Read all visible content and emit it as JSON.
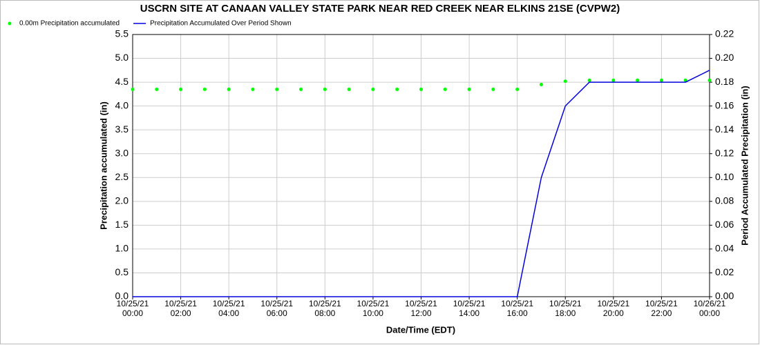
{
  "chart_data": {
    "type": "line",
    "title": "USCRN SITE AT CANAAN VALLEY STATE PARK NEAR RED CREEK NEAR ELKINS 21SE (CVPW2)",
    "x_label": "Date/Time (EDT)",
    "y_label": "Precipitation accumulated (in)",
    "y2_label": "Period Accumulated Precipitation (in)",
    "x": [
      {
        "date": "10/25/21",
        "time": "00:00"
      },
      null,
      {
        "date": "10/25/21",
        "time": "02:00"
      },
      null,
      {
        "date": "10/25/21",
        "time": "04:00"
      },
      null,
      {
        "date": "10/25/21",
        "time": "06:00"
      },
      null,
      {
        "date": "10/25/21",
        "time": "08:00"
      },
      null,
      {
        "date": "10/25/21",
        "time": "10:00"
      },
      null,
      {
        "date": "10/25/21",
        "time": "12:00"
      },
      null,
      {
        "date": "10/25/21",
        "time": "14:00"
      },
      null,
      {
        "date": "10/25/21",
        "time": "16:00"
      },
      null,
      {
        "date": "10/25/21",
        "time": "18:00"
      },
      null,
      {
        "date": "10/25/21",
        "time": "20:00"
      },
      null,
      {
        "date": "10/25/21",
        "time": "22:00"
      },
      null,
      {
        "date": "10/26/21",
        "time": "00:00"
      }
    ],
    "series": [
      {
        "name": "0.00m Precipitation accumulated",
        "color": "#00ff00",
        "style": "points",
        "values": [
          4.35,
          4.35,
          4.35,
          4.35,
          4.35,
          4.35,
          4.35,
          4.35,
          4.35,
          4.35,
          4.35,
          4.35,
          4.35,
          4.35,
          4.35,
          4.35,
          4.35,
          4.45,
          4.52,
          4.54,
          4.54,
          4.54,
          4.54,
          4.54,
          4.54
        ]
      },
      {
        "name": "Precipitation Accumulated Over Period Shown",
        "color": "#0000dd",
        "style": "line",
        "axis": "y2",
        "values": [
          0,
          0,
          0,
          0,
          0,
          0,
          0,
          0,
          0,
          0,
          0,
          0,
          0,
          0,
          0,
          0,
          0,
          0.1,
          0.16,
          0.18,
          0.18,
          0.18,
          0.18,
          0.18,
          0.19
        ]
      }
    ],
    "ylim": [
      0,
      5.5
    ],
    "yticks": [
      {
        "value": 0,
        "label": "0.0"
      },
      0.5,
      {
        "value": 1,
        "label": "1.0"
      },
      1.5,
      {
        "value": 2,
        "label": "2.0"
      },
      2.5,
      {
        "value": 3,
        "label": "3.0"
      },
      3.5,
      {
        "value": 4,
        "label": "4.0"
      },
      4.5,
      {
        "value": 5,
        "label": "5.0"
      },
      5.5
    ],
    "y2lim": [
      0,
      0.22
    ],
    "y2ticks": [
      {
        "value": 0,
        "label": "0.00"
      },
      0.02,
      0.04,
      0.06,
      0.08,
      {
        "value": 0.1,
        "label": "0.10"
      },
      0.12,
      0.14,
      0.16,
      0.18,
      {
        "value": 0.2,
        "label": "0.20"
      },
      0.22
    ],
    "grid": true
  }
}
